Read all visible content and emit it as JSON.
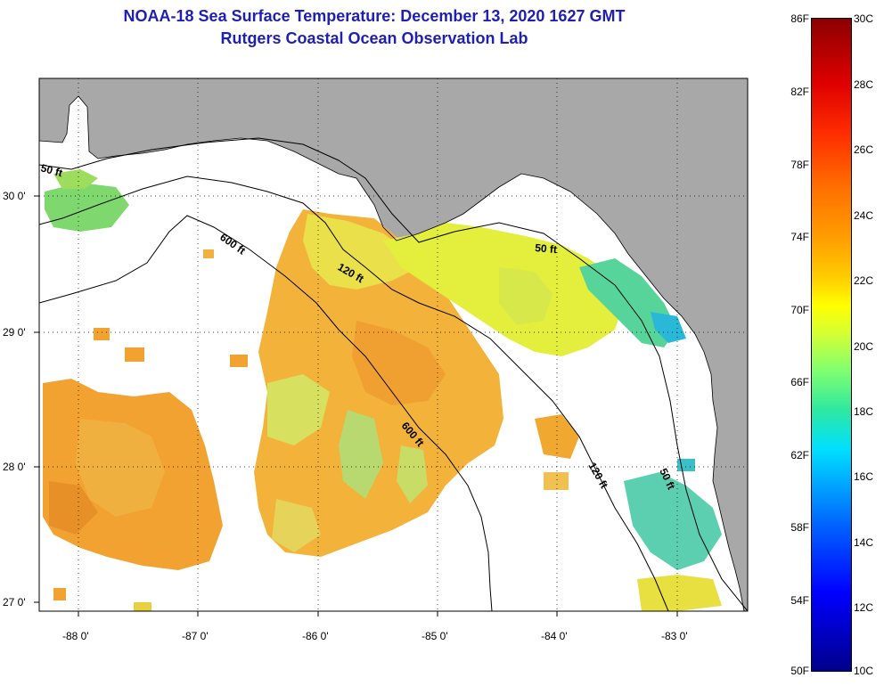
{
  "header": {
    "title_line1": "NOAA-18 Sea Surface Temperature:  December 13, 2020 1627 GMT",
    "title_line2": "Rutgers Coastal Ocean Observation Lab"
  },
  "map": {
    "lat_labels": [
      "30 0'",
      "29 0'",
      "28 0'",
      "27 0'"
    ],
    "lon_labels": [
      "-88 0'",
      "-87 0'",
      "-86 0'",
      "-85 0'",
      "-84 0'",
      "-83 0'"
    ],
    "contour_labels": {
      "c50_west": "50 ft",
      "c600_north": "600 ft",
      "c120_north": "120 ft",
      "c50_east": "50 ft",
      "c600_south": "600 ft",
      "c120_south": "120 ft",
      "c50_south": "50 ft"
    },
    "colors": {
      "land": "#a8a8a8",
      "ocean_nodata": "#ffffff"
    }
  },
  "colorbar": {
    "fahrenheit_labels": [
      "86F",
      "82F",
      "78F",
      "74F",
      "70F",
      "66F",
      "62F",
      "58F",
      "54F",
      "50F"
    ],
    "celsius_labels": [
      "30C",
      "28C",
      "26C",
      "24C",
      "22C",
      "20C",
      "18C",
      "16C",
      "14C",
      "12C",
      "10C"
    ]
  }
}
